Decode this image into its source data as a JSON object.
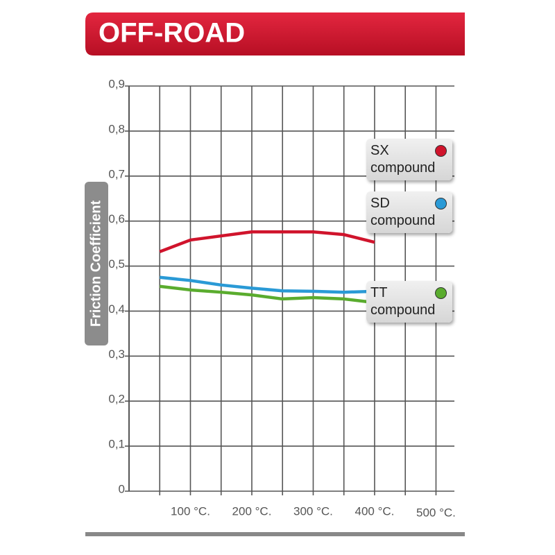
{
  "title": "OFF-ROAD",
  "chart_data": {
    "type": "line",
    "ylabel": "Friction Coefficient",
    "xlim": [
      0,
      530
    ],
    "xticks": [
      {
        "value": 100,
        "label": "100 °C."
      },
      {
        "value": 200,
        "label": "200 °C."
      },
      {
        "value": 300,
        "label": "300 °C."
      },
      {
        "value": 400,
        "label": "400 °C."
      },
      {
        "value": 500,
        "label": "500 °C."
      }
    ],
    "xgrid": [
      50,
      100,
      150,
      200,
      250,
      300,
      350,
      400,
      450,
      500
    ],
    "ylim": [
      0,
      0.9
    ],
    "yticks": [
      0,
      {
        "value": 0.1,
        "label": "0,1"
      },
      {
        "value": 0.2,
        "label": "0,2"
      },
      {
        "value": 0.3,
        "label": "0,3"
      },
      {
        "value": 0.4,
        "label": "0,4"
      },
      {
        "value": 0.5,
        "label": "0,5"
      },
      {
        "value": 0.6,
        "label": "0,6"
      },
      {
        "value": 0.7,
        "label": "0,7"
      },
      {
        "value": 0.8,
        "label": "0,8"
      },
      {
        "value": 0.9,
        "label": "0,9"
      }
    ],
    "grid": true,
    "x": [
      50,
      100,
      150,
      200,
      250,
      300,
      350,
      400
    ],
    "series": [
      {
        "name": "SX compound",
        "color": "#d0142c",
        "values": [
          0.532,
          0.558,
          0.567,
          0.576,
          0.576,
          0.576,
          0.57,
          0.553
        ]
      },
      {
        "name": "SD compound",
        "color": "#2a9ad6",
        "values": [
          0.475,
          0.468,
          0.458,
          0.451,
          0.445,
          0.444,
          0.442,
          0.444
        ]
      },
      {
        "name": "TT compound",
        "color": "#5aac2e",
        "values": [
          0.455,
          0.447,
          0.442,
          0.436,
          0.427,
          0.43,
          0.427,
          0.419
        ]
      }
    ]
  }
}
